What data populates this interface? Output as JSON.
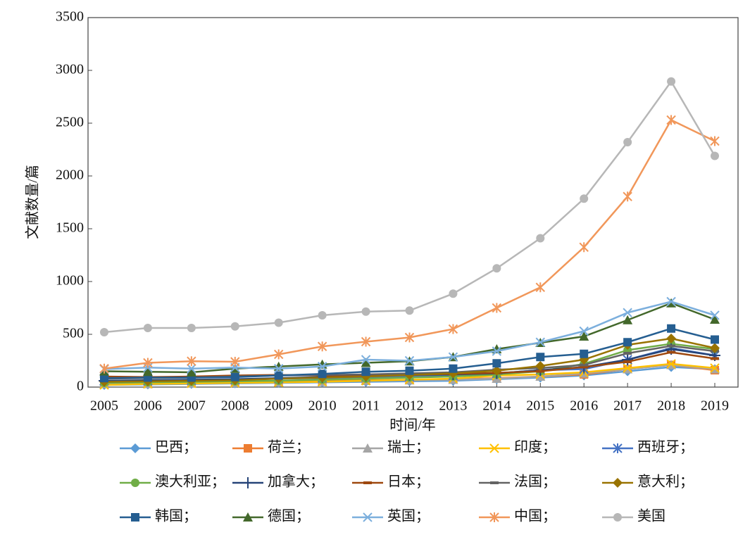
{
  "chart_data": {
    "type": "line",
    "x_label": "时间/年",
    "y_label": "文献数量/篇",
    "categories": [
      "2005",
      "2006",
      "2007",
      "2008",
      "2009",
      "2010",
      "2011",
      "2012",
      "2013",
      "2014",
      "2015",
      "2016",
      "2017",
      "2018",
      "2019"
    ],
    "ylim": [
      0,
      3500
    ],
    "yticks": [
      0,
      500,
      1000,
      1500,
      2000,
      2500,
      3000,
      3500
    ],
    "legend": "bottom",
    "series": [
      {
        "name": "巴西；",
        "color": "#5b9bd5",
        "marker": "diamond",
        "values": [
          20,
          25,
          30,
          35,
          40,
          45,
          50,
          55,
          60,
          75,
          90,
          110,
          150,
          190,
          170
        ]
      },
      {
        "name": "荷兰；",
        "color": "#ed7d31",
        "marker": "square",
        "values": [
          40,
          45,
          45,
          50,
          55,
          60,
          65,
          70,
          75,
          85,
          100,
          120,
          170,
          210,
          160
        ]
      },
      {
        "name": "瑞士；",
        "color": "#a5a5a5",
        "marker": "triangle",
        "values": [
          30,
          30,
          35,
          40,
          45,
          50,
          60,
          65,
          70,
          80,
          100,
          130,
          170,
          210,
          170
        ]
      },
      {
        "name": "印度；",
        "color": "#ffc000",
        "marker": "x",
        "values": [
          20,
          30,
          35,
          40,
          45,
          50,
          60,
          70,
          80,
          110,
          120,
          140,
          180,
          220,
          180
        ]
      },
      {
        "name": "西班牙；",
        "color": "#4472c4",
        "marker": "star",
        "values": [
          60,
          60,
          65,
          70,
          80,
          85,
          95,
          100,
          110,
          130,
          160,
          170,
          260,
          370,
          300
        ]
      },
      {
        "name": "澳大利亚；",
        "color": "#70ad47",
        "marker": "circle",
        "values": [
          40,
          45,
          50,
          55,
          60,
          70,
          80,
          90,
          100,
          120,
          150,
          220,
          350,
          410,
          360
        ]
      },
      {
        "name": "加拿大；",
        "color": "#264478",
        "marker": "plus",
        "values": [
          60,
          65,
          70,
          75,
          85,
          95,
          105,
          115,
          120,
          130,
          160,
          190,
          260,
          360,
          300
        ]
      },
      {
        "name": "日本；",
        "color": "#9e480e",
        "marker": "dash",
        "values": [
          100,
          95,
          100,
          110,
          115,
          110,
          105,
          115,
          125,
          135,
          150,
          190,
          240,
          330,
          270
        ]
      },
      {
        "name": "法国；",
        "color": "#636363",
        "marker": "dash",
        "values": [
          80,
          85,
          90,
          100,
          110,
          115,
          120,
          130,
          140,
          165,
          180,
          210,
          320,
          390,
          340
        ]
      },
      {
        "name": "意大利；",
        "color": "#997300",
        "marker": "diamond",
        "values": [
          50,
          55,
          60,
          65,
          80,
          90,
          100,
          115,
          130,
          155,
          200,
          260,
          400,
          460,
          370
        ]
      },
      {
        "name": "韩国；",
        "color": "#255e91",
        "marker": "square",
        "values": [
          85,
          90,
          90,
          95,
          110,
          125,
          145,
          155,
          175,
          225,
          285,
          315,
          425,
          555,
          450
        ]
      },
      {
        "name": "德国；",
        "color": "#43682b",
        "marker": "triangle",
        "values": [
          150,
          145,
          140,
          175,
          195,
          215,
          230,
          245,
          285,
          360,
          420,
          480,
          635,
          795,
          640
        ]
      },
      {
        "name": "英国；",
        "color": "#7cafdd",
        "marker": "x",
        "values": [
          170,
          185,
          175,
          185,
          175,
          195,
          260,
          250,
          285,
          340,
          425,
          530,
          705,
          810,
          680
        ]
      },
      {
        "name": "中国；",
        "color": "#f1975a",
        "marker": "star",
        "values": [
          175,
          230,
          245,
          240,
          310,
          385,
          430,
          470,
          550,
          750,
          945,
          1325,
          1805,
          2530,
          2330
        ]
      },
      {
        "name": "美国",
        "color": "#b7b7b7",
        "marker": "circle",
        "values": [
          520,
          560,
          560,
          575,
          610,
          680,
          715,
          725,
          885,
          1125,
          1410,
          1785,
          2320,
          2895,
          2190
        ]
      }
    ]
  }
}
